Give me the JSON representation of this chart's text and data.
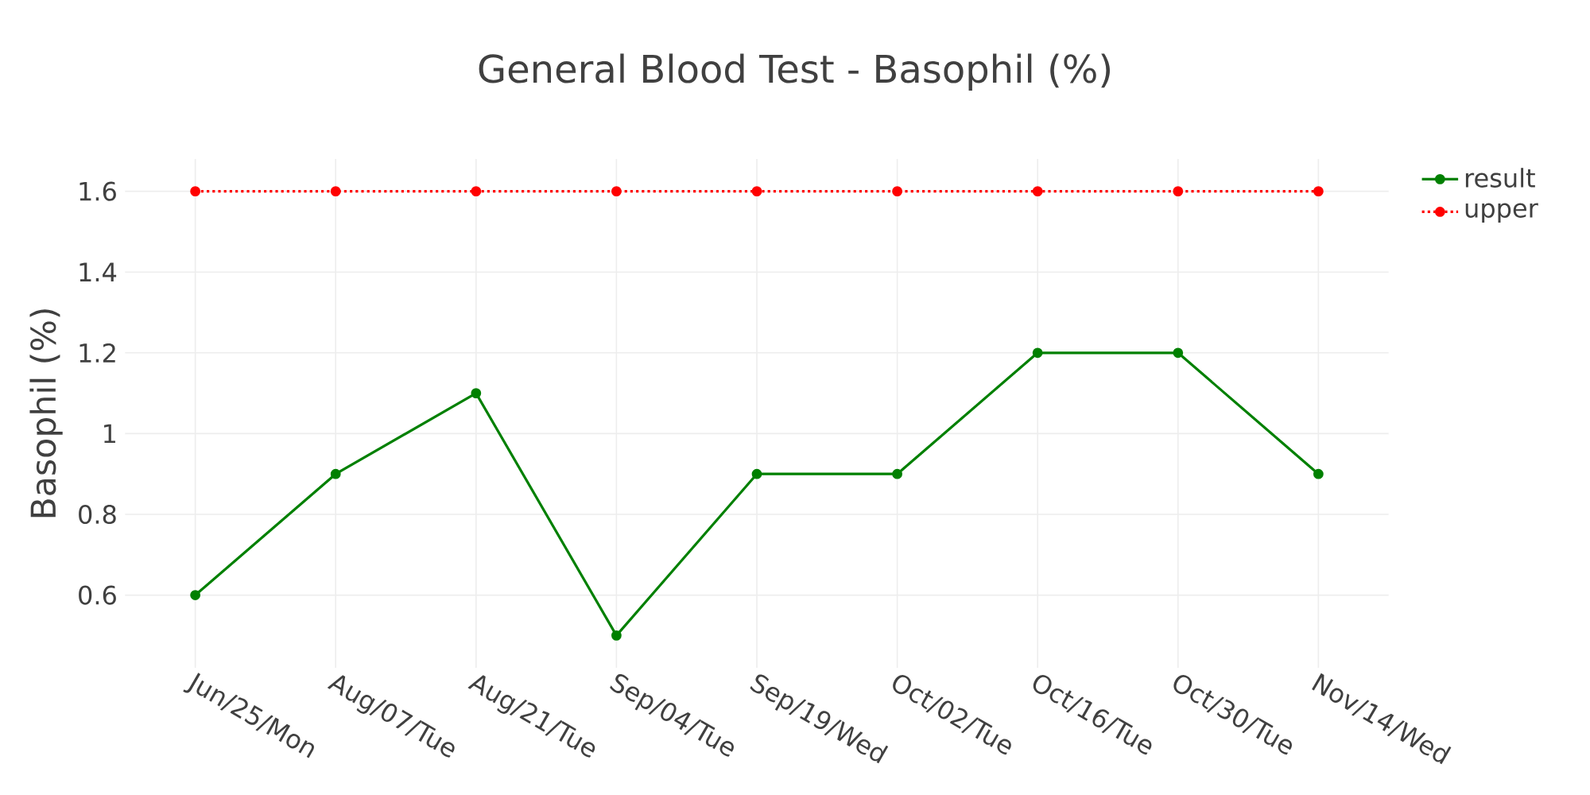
{
  "chart_data": {
    "type": "line",
    "title": "General Blood Test - Basophil (%)",
    "ylabel": "Basophil (%)",
    "categories": [
      "Jun/25/Mon",
      "Aug/07/Tue",
      "Aug/21/Tue",
      "Sep/04/Tue",
      "Sep/19/Wed",
      "Oct/02/Tue",
      "Oct/16/Tue",
      "Oct/30/Tue",
      "Nov/14/Wed"
    ],
    "series": [
      {
        "name": "result",
        "color": "#008000",
        "line_style": "solid",
        "values": [
          0.6,
          0.9,
          1.1,
          0.5,
          0.9,
          0.9,
          1.2,
          1.2,
          0.9
        ]
      },
      {
        "name": "upper",
        "color": "#ff0000",
        "line_style": "dotted",
        "values": [
          1.6,
          1.6,
          1.6,
          1.6,
          1.6,
          1.6,
          1.6,
          1.6,
          1.6
        ]
      }
    ],
    "ylim": [
      0.42,
      1.68
    ],
    "yticks": [
      0.6,
      0.8,
      1,
      1.2,
      1.4,
      1.6
    ],
    "grid": true,
    "legend": "top right",
    "marker": "circle"
  }
}
